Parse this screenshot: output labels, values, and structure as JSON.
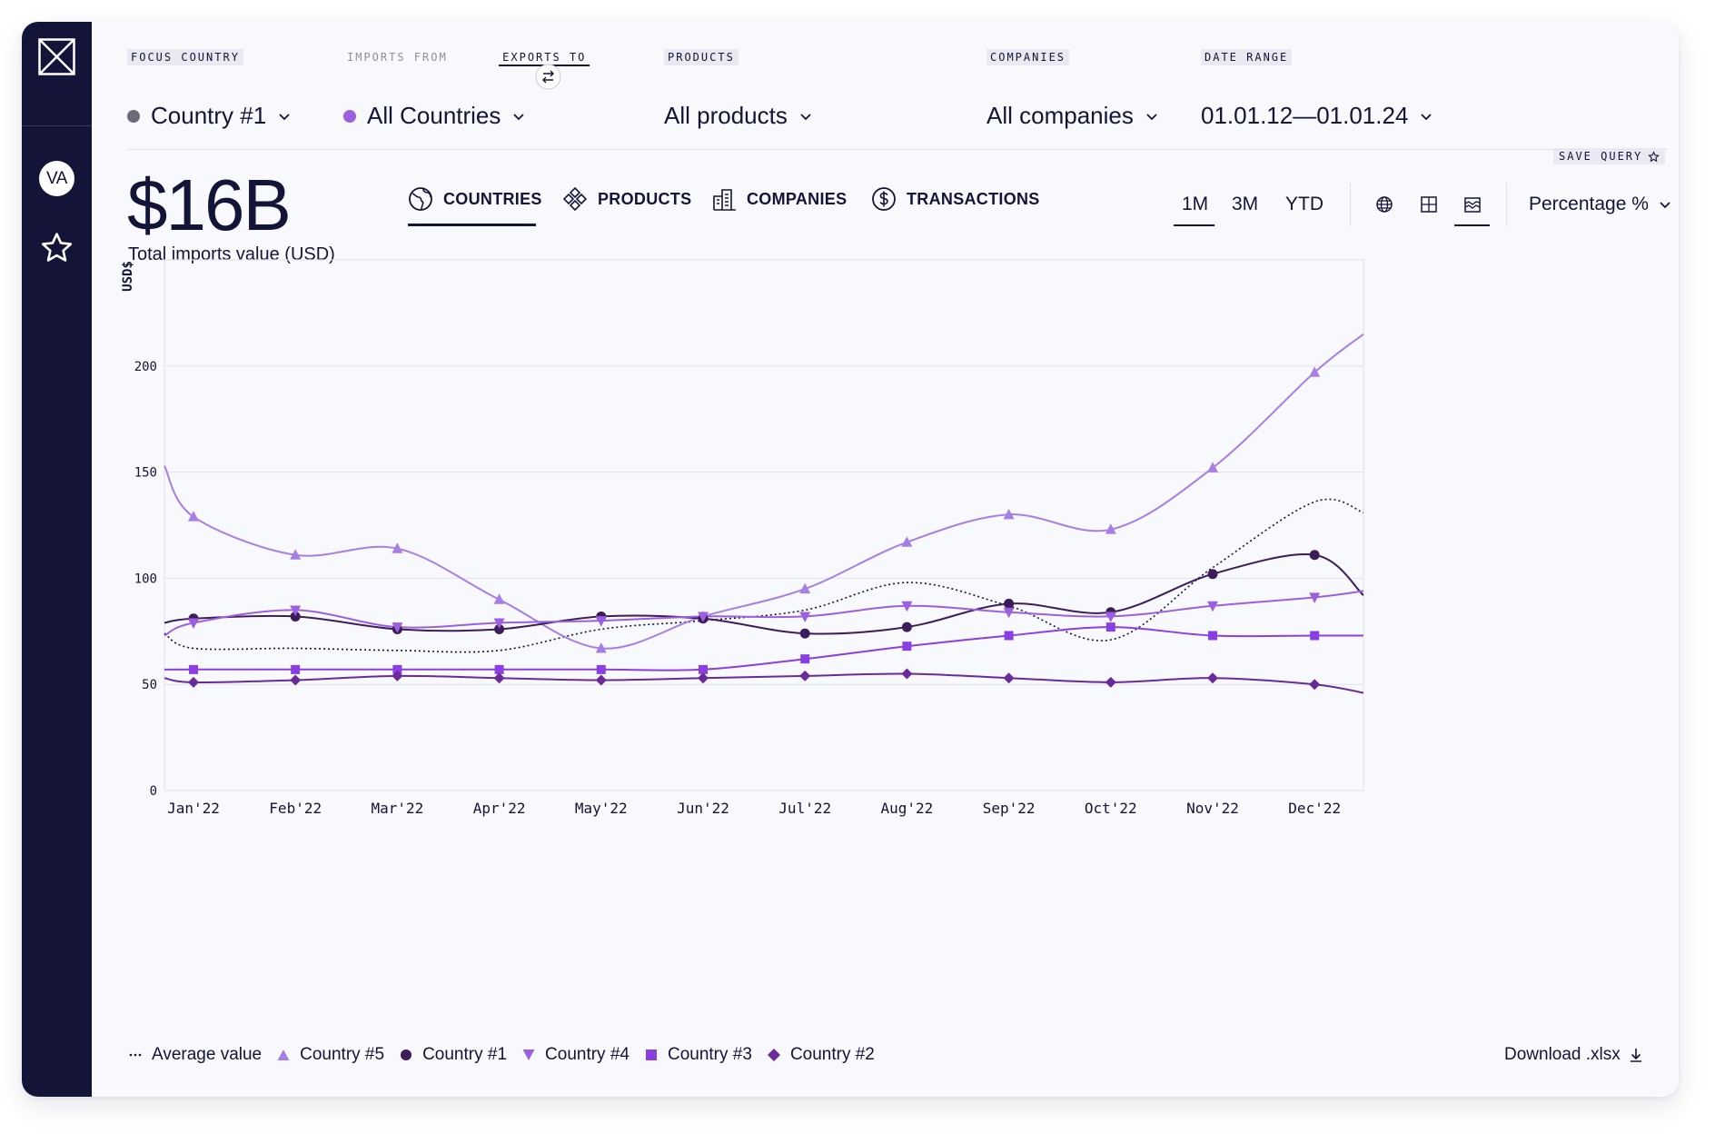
{
  "sidebar": {
    "avatar_initials": "VA"
  },
  "filters": {
    "focus_country": {
      "label": "FOCUS COUNTRY",
      "value": "Country #1",
      "dot_color": "#6b6b7a"
    },
    "imports_from": {
      "label": "IMPORTS FROM"
    },
    "exports_to": {
      "label": "EXPORTS TO",
      "value": "All Countries",
      "dot_color": "#9b5fe0"
    },
    "products": {
      "label": "PRODUCTS",
      "value": "All products"
    },
    "companies": {
      "label": "COMPANIES",
      "value": "All companies"
    },
    "date_range": {
      "label": "DATE RANGE",
      "value": "01.01.12—01.01.24"
    }
  },
  "save_query_label": "SAVE QUERY",
  "summary": {
    "value": "$16B",
    "label": "Total imports value (USD)"
  },
  "tabs": [
    {
      "label": "COUNTRIES",
      "icon": "globe-icon",
      "active": true
    },
    {
      "label": "PRODUCTS",
      "icon": "products-icon",
      "active": false
    },
    {
      "label": "COMPANIES",
      "icon": "buildings-icon",
      "active": false
    },
    {
      "label": "TRANSACTIONS",
      "icon": "dollar-icon",
      "active": false
    }
  ],
  "ranges": [
    {
      "label": "1M",
      "active": true
    },
    {
      "label": "3M",
      "active": false
    },
    {
      "label": "YTD",
      "active": false
    }
  ],
  "views": [
    {
      "icon": "globe-view-icon",
      "active": false
    },
    {
      "icon": "table-view-icon",
      "active": false
    },
    {
      "icon": "chart-view-icon",
      "active": true
    }
  ],
  "metric": "Percentage %",
  "download_label": "Download .xlsx",
  "chart_data": {
    "type": "line",
    "ylabel": "USD$",
    "ylim": [
      0,
      250
    ],
    "yticks": [
      0,
      50,
      100,
      150,
      200
    ],
    "grid": true,
    "x": [
      "Jan'22",
      "Feb'22",
      "Mar'22",
      "Apr'22",
      "May'22",
      "Jun'22",
      "Jul'22",
      "Aug'22",
      "Sep'22",
      "Oct'22",
      "Nov'22",
      "Dec'22"
    ],
    "series": [
      {
        "name": "Average value",
        "marker": "none",
        "style": "dotted",
        "color": "#141338",
        "start": 74,
        "values": [
          67,
          67,
          66,
          66,
          76,
          80,
          85,
          98,
          87,
          71,
          105,
          136
        ],
        "end": 131
      },
      {
        "name": "Country #5",
        "marker": "triangle-up",
        "color": "#a77ee6",
        "start": 153,
        "values": [
          129,
          111,
          114,
          90,
          67,
          82,
          95,
          117,
          130,
          123,
          152,
          197
        ],
        "end": 215
      },
      {
        "name": "Country #1",
        "marker": "circle",
        "color": "#3d1c5a",
        "start": 79,
        "values": [
          81,
          82,
          76,
          76,
          82,
          81,
          74,
          77,
          88,
          84,
          102,
          111
        ],
        "end": 92
      },
      {
        "name": "Country #4",
        "marker": "triangle-down",
        "color": "#9b5fe0",
        "start": 73,
        "values": [
          79,
          85,
          77,
          79,
          80,
          82,
          82,
          87,
          84,
          82,
          87,
          91
        ],
        "end": 94
      },
      {
        "name": "Country #3",
        "marker": "square",
        "color": "#8a3fe0",
        "start": 57,
        "values": [
          57,
          57,
          57,
          57,
          57,
          57,
          62,
          68,
          73,
          77,
          73,
          73
        ],
        "end": 73
      },
      {
        "name": "Country #2",
        "marker": "diamond",
        "color": "#6a2a9a",
        "start": 53,
        "values": [
          51,
          52,
          54,
          53,
          52,
          53,
          54,
          55,
          53,
          51,
          53,
          50
        ],
        "end": 46
      }
    ]
  }
}
